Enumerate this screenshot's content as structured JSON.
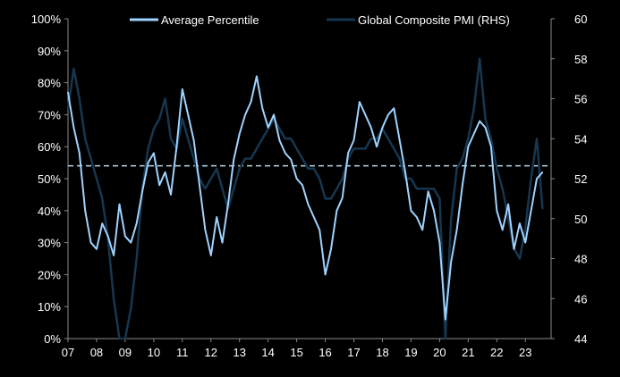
{
  "colors": {
    "background": "#000000",
    "axis_text": "#ffffff",
    "axis_line": "#8a8a8a",
    "average_percentile": "#9fd3ff",
    "global_pmi": "#17364f",
    "reference_line": "#b9d9ee"
  },
  "chart_data": {
    "type": "line",
    "title": "",
    "xlabel": "",
    "ylabel": "",
    "legend": {
      "placement": "top"
    },
    "grid": false,
    "x_domain": [
      2007.0,
      2023.9
    ],
    "x_ticks": [
      2007,
      2008,
      2009,
      2010,
      2011,
      2012,
      2013,
      2014,
      2015,
      2016,
      2017,
      2018,
      2019,
      2020,
      2021,
      2022,
      2023
    ],
    "x_tick_labels": [
      "07",
      "08",
      "09",
      "10",
      "11",
      "12",
      "13",
      "14",
      "15",
      "16",
      "17",
      "18",
      "19",
      "20",
      "21",
      "22",
      "23"
    ],
    "y_left": {
      "min": 0,
      "max": 100,
      "step": 10,
      "tick_labels": [
        "0%",
        "10%",
        "20%",
        "30%",
        "40%",
        "50%",
        "60%",
        "70%",
        "80%",
        "90%",
        "100%"
      ]
    },
    "y_right": {
      "min": 44,
      "max": 60,
      "step": 2,
      "tick_labels": [
        "44",
        "46",
        "48",
        "50",
        "52",
        "54",
        "56",
        "58",
        "60"
      ]
    },
    "reference_line": {
      "axis": "left",
      "value": 54,
      "style": "dashed"
    },
    "series": [
      {
        "name": "Average Percentile",
        "axis": "left",
        "x": [
          2007.0,
          2007.2,
          2007.4,
          2007.6,
          2007.8,
          2008.0,
          2008.2,
          2008.4,
          2008.6,
          2008.8,
          2009.0,
          2009.2,
          2009.4,
          2009.6,
          2009.8,
          2010.0,
          2010.2,
          2010.4,
          2010.6,
          2010.8,
          2011.0,
          2011.2,
          2011.4,
          2011.6,
          2011.8,
          2012.0,
          2012.2,
          2012.4,
          2012.6,
          2012.8,
          2013.0,
          2013.2,
          2013.4,
          2013.6,
          2013.8,
          2014.0,
          2014.2,
          2014.4,
          2014.6,
          2014.8,
          2015.0,
          2015.2,
          2015.4,
          2015.6,
          2015.8,
          2016.0,
          2016.2,
          2016.4,
          2016.6,
          2016.8,
          2017.0,
          2017.2,
          2017.4,
          2017.6,
          2017.8,
          2018.0,
          2018.2,
          2018.4,
          2018.6,
          2018.8,
          2019.0,
          2019.2,
          2019.4,
          2019.6,
          2019.8,
          2020.0,
          2020.2,
          2020.4,
          2020.6,
          2020.8,
          2021.0,
          2021.2,
          2021.4,
          2021.6,
          2021.8,
          2022.0,
          2022.2,
          2022.4,
          2022.6,
          2022.8,
          2023.0,
          2023.2,
          2023.4,
          2023.6
        ],
        "values": [
          77,
          66,
          58,
          40,
          30,
          28,
          36,
          32,
          26,
          42,
          32,
          30,
          36,
          46,
          55,
          58,
          48,
          52,
          45,
          60,
          78,
          70,
          62,
          48,
          34,
          26,
          38,
          30,
          42,
          56,
          64,
          70,
          74,
          82,
          72,
          66,
          70,
          62,
          58,
          56,
          50,
          48,
          42,
          38,
          34,
          20,
          28,
          40,
          44,
          58,
          62,
          74,
          70,
          66,
          60,
          66,
          70,
          72,
          62,
          52,
          40,
          38,
          34,
          46,
          40,
          30,
          6,
          24,
          34,
          48,
          60,
          64,
          68,
          66,
          60,
          40,
          34,
          42,
          28,
          36,
          30,
          40,
          50,
          52
        ]
      },
      {
        "name": "Global Composite PMI (RHS)",
        "axis": "right",
        "x": [
          2007.0,
          2007.2,
          2007.4,
          2007.6,
          2007.8,
          2008.0,
          2008.2,
          2008.4,
          2008.6,
          2008.8,
          2009.0,
          2009.2,
          2009.4,
          2009.6,
          2009.8,
          2010.0,
          2010.2,
          2010.4,
          2010.6,
          2010.8,
          2011.0,
          2011.2,
          2011.4,
          2011.6,
          2011.8,
          2012.0,
          2012.2,
          2012.4,
          2012.6,
          2012.8,
          2013.0,
          2013.2,
          2013.4,
          2013.6,
          2013.8,
          2014.0,
          2014.2,
          2014.4,
          2014.6,
          2014.8,
          2015.0,
          2015.2,
          2015.4,
          2015.6,
          2015.8,
          2016.0,
          2016.2,
          2016.4,
          2016.6,
          2016.8,
          2017.0,
          2017.2,
          2017.4,
          2017.6,
          2017.8,
          2018.0,
          2018.2,
          2018.4,
          2018.6,
          2018.8,
          2019.0,
          2019.2,
          2019.4,
          2019.6,
          2019.8,
          2020.0,
          2020.2,
          2020.4,
          2020.6,
          2020.8,
          2021.0,
          2021.2,
          2021.4,
          2021.6,
          2021.8,
          2022.0,
          2022.2,
          2022.4,
          2022.6,
          2022.8,
          2023.0,
          2023.2,
          2023.4,
          2023.6
        ],
        "values": [
          55.5,
          57.5,
          56.0,
          54.0,
          53.0,
          52.0,
          51.0,
          49.0,
          46.0,
          44.0,
          44.0,
          45.5,
          48.0,
          51.5,
          53.5,
          54.5,
          55.0,
          56.0,
          54.0,
          53.5,
          55.0,
          54.0,
          53.0,
          52.0,
          51.5,
          52.0,
          52.5,
          51.5,
          50.5,
          51.5,
          52.5,
          53.0,
          53.0,
          53.5,
          54.0,
          54.5,
          55.0,
          54.5,
          54.0,
          54.0,
          53.5,
          53.0,
          52.5,
          52.5,
          52.0,
          51.0,
          51.0,
          51.5,
          52.0,
          53.0,
          53.5,
          53.5,
          53.5,
          54.0,
          54.0,
          54.5,
          54.0,
          53.5,
          53.0,
          52.0,
          52.0,
          51.5,
          51.5,
          51.5,
          51.5,
          51.0,
          44.0,
          50.0,
          52.5,
          53.0,
          54.0,
          55.5,
          58.0,
          55.0,
          54.0,
          52.5,
          51.5,
          50.0,
          48.5,
          48.0,
          49.5,
          52.0,
          54.0,
          50.5
        ]
      }
    ]
  }
}
